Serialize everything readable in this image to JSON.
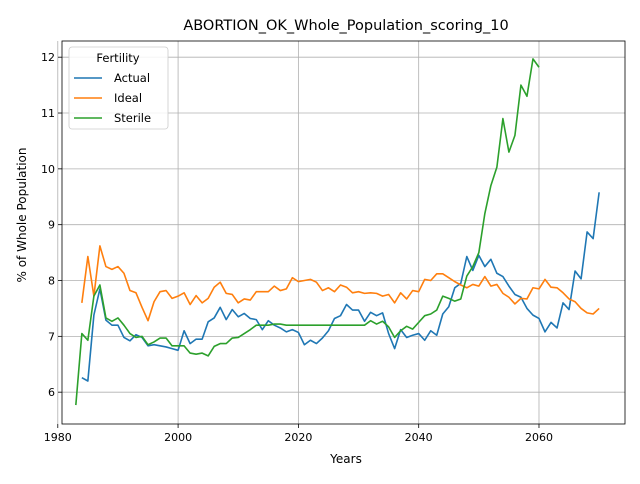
{
  "chart_data": {
    "type": "line",
    "title": "ABORTION_OK_Whole_Population_scoring_10",
    "xlabel": "Years",
    "ylabel": "% of Whole Population",
    "xlim": [
      1980.7,
      2074.3
    ],
    "ylim": [
      5.43,
      12.29
    ],
    "xticks": [
      1980,
      2000,
      2020,
      2040,
      2060
    ],
    "yticks": [
      6,
      7,
      8,
      9,
      10,
      11,
      12
    ],
    "grid": true,
    "legend": {
      "title": "Fertility",
      "placement": "upper-left"
    },
    "x": [
      1983,
      1984,
      1985,
      1986,
      1987,
      1988,
      1989,
      1990,
      1991,
      1992,
      1993,
      1994,
      1995,
      1996,
      1997,
      1998,
      1999,
      2000,
      2001,
      2002,
      2003,
      2004,
      2005,
      2006,
      2007,
      2008,
      2009,
      2010,
      2011,
      2012,
      2013,
      2014,
      2015,
      2016,
      2017,
      2018,
      2019,
      2020,
      2021,
      2022,
      2023,
      2024,
      2025,
      2026,
      2027,
      2028,
      2029,
      2030,
      2031,
      2032,
      2033,
      2034,
      2035,
      2036,
      2037,
      2038,
      2039,
      2040,
      2041,
      2042,
      2043,
      2044,
      2045,
      2046,
      2047,
      2048,
      2049,
      2050,
      2051,
      2052,
      2053,
      2054,
      2055,
      2056,
      2057,
      2058,
      2059,
      2060,
      2061,
      2062,
      2063,
      2064,
      2065,
      2066,
      2067,
      2068,
      2069,
      2070
    ],
    "series": [
      {
        "name": "Actual",
        "color": "#1f77b4",
        "values": [
          null,
          6.26,
          6.2,
          7.38,
          7.85,
          7.29,
          7.2,
          7.2,
          6.98,
          6.92,
          7.03,
          6.98,
          6.83,
          6.85,
          6.83,
          6.81,
          6.78,
          6.75,
          7.1,
          6.87,
          6.95,
          6.95,
          7.26,
          7.33,
          7.52,
          7.3,
          7.48,
          7.35,
          7.41,
          7.32,
          7.3,
          7.12,
          7.28,
          7.2,
          7.15,
          7.08,
          7.12,
          7.07,
          6.85,
          6.93,
          6.87,
          6.97,
          7.1,
          7.32,
          7.37,
          7.57,
          7.47,
          7.47,
          7.27,
          7.43,
          7.37,
          7.42,
          7.05,
          6.78,
          7.12,
          6.98,
          7.02,
          7.05,
          6.93,
          7.1,
          7.02,
          7.4,
          7.53,
          7.87,
          7.95,
          8.43,
          8.18,
          8.45,
          8.25,
          8.38,
          8.13,
          8.07,
          7.9,
          7.75,
          7.7,
          7.5,
          7.38,
          7.32,
          7.08,
          7.25,
          7.15,
          7.6,
          7.48,
          8.17,
          8.03,
          8.87,
          8.75,
          9.58
        ]
      },
      {
        "name": "Ideal",
        "color": "#ff7f0e",
        "values": [
          null,
          7.6,
          8.43,
          7.72,
          8.62,
          8.25,
          8.2,
          8.25,
          8.13,
          7.82,
          7.78,
          7.52,
          7.28,
          7.62,
          7.8,
          7.82,
          7.68,
          7.72,
          7.78,
          7.57,
          7.73,
          7.6,
          7.68,
          7.88,
          7.97,
          7.77,
          7.75,
          7.6,
          7.67,
          7.65,
          7.8,
          7.8,
          7.8,
          7.9,
          7.82,
          7.85,
          8.05,
          7.98,
          8.0,
          8.02,
          7.97,
          7.82,
          7.87,
          7.8,
          7.92,
          7.88,
          7.78,
          7.8,
          7.77,
          7.78,
          7.77,
          7.72,
          7.75,
          7.6,
          7.78,
          7.67,
          7.82,
          7.8,
          8.02,
          8.0,
          8.12,
          8.12,
          8.05,
          7.98,
          7.92,
          7.87,
          7.93,
          7.9,
          8.07,
          7.9,
          7.93,
          7.77,
          7.7,
          7.58,
          7.68,
          7.67,
          7.87,
          7.85,
          8.02,
          7.88,
          7.87,
          7.78,
          7.67,
          7.62,
          7.5,
          7.42,
          7.4,
          7.5
        ]
      },
      {
        "name": "Sterile",
        "color": "#2ca02c",
        "values": [
          5.77,
          7.05,
          6.93,
          7.72,
          7.92,
          7.33,
          7.27,
          7.33,
          7.2,
          7.05,
          6.98,
          7.0,
          6.85,
          6.9,
          6.97,
          6.97,
          6.83,
          6.83,
          6.83,
          6.7,
          6.68,
          6.7,
          6.65,
          6.82,
          6.87,
          6.87,
          6.97,
          6.98,
          7.05,
          7.12,
          7.2,
          7.2,
          7.2,
          7.22,
          7.22,
          7.2,
          7.2,
          7.2,
          7.2,
          7.2,
          7.2,
          7.2,
          7.2,
          7.2,
          7.2,
          7.2,
          7.2,
          7.2,
          7.2,
          7.28,
          7.22,
          7.27,
          7.17,
          6.98,
          7.1,
          7.18,
          7.13,
          7.25,
          7.37,
          7.4,
          7.47,
          7.72,
          7.68,
          7.63,
          7.67,
          8.08,
          8.25,
          8.5,
          9.2,
          9.7,
          10.03,
          10.9,
          10.3,
          10.6,
          11.5,
          11.3,
          11.97,
          11.82,
          null,
          null,
          null,
          null,
          null,
          null,
          null,
          null,
          null,
          null
        ]
      }
    ]
  }
}
